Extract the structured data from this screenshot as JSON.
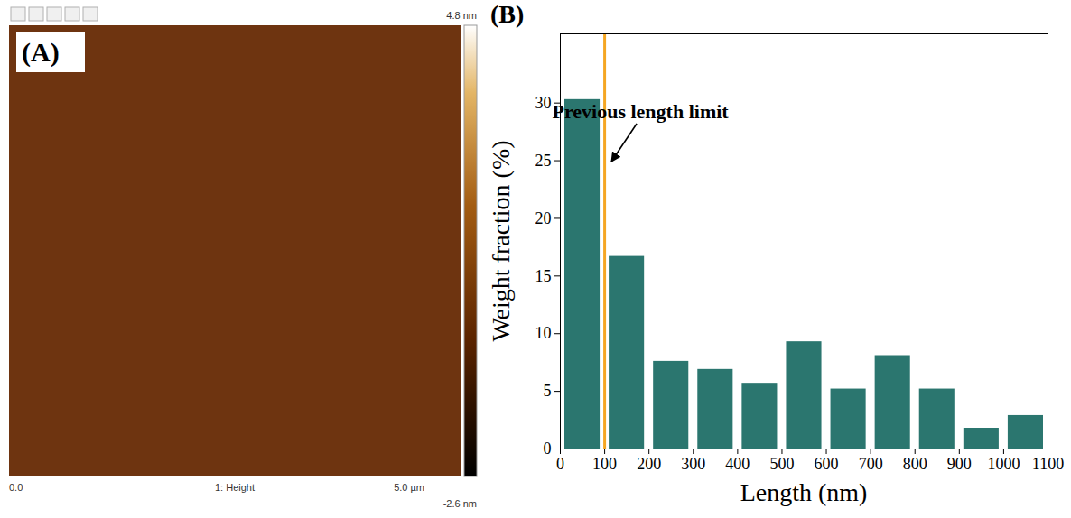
{
  "image_panel": {
    "label": "(A)",
    "colorbar_max": "4.8 nm",
    "colorbar_min": "-2.6 nm",
    "x_start": "0.0",
    "channel": "1: Height",
    "x_end": "5.0 µm"
  },
  "chart_data": {
    "type": "histogram",
    "panel_label": "(B)",
    "bins": [
      0,
      100,
      200,
      300,
      400,
      500,
      600,
      700,
      800,
      900,
      1000,
      1100
    ],
    "values": [
      30.3,
      16.7,
      7.6,
      6.9,
      5.7,
      9.3,
      5.2,
      8.1,
      5.2,
      1.8,
      2.9
    ],
    "color": "#2b766f",
    "xlabel": "Length (nm)",
    "ylabel": "Weight fraction (%)",
    "xlim": [
      0,
      1100
    ],
    "ylim": [
      0,
      36
    ],
    "xticks": [
      0,
      100,
      200,
      300,
      400,
      500,
      600,
      700,
      800,
      900,
      1000,
      1100
    ],
    "yticks": [
      0,
      5,
      10,
      15,
      20,
      25,
      30
    ],
    "annotations": [
      {
        "text": "Previous length limit",
        "x": 100,
        "color": "#f5a623",
        "line_style": "dashed"
      }
    ]
  }
}
